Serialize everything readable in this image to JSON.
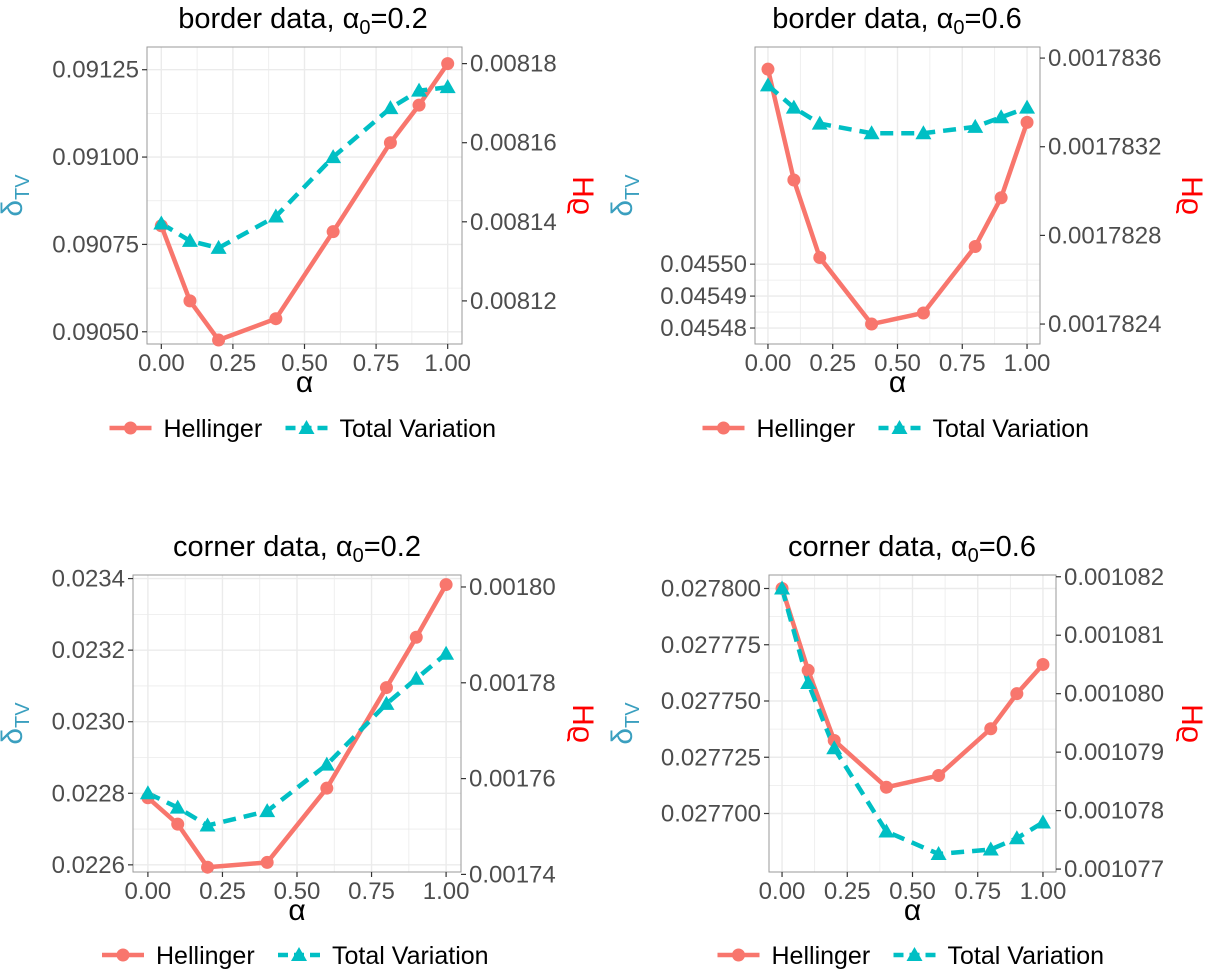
{
  "colors": {
    "hellinger": "#F8766D",
    "total_variation": "#00BFC4",
    "tv_axis_label": "#3A9FBF",
    "hellinger_axis_label": "#FF0000",
    "grid": "#EBEBEB",
    "panel_border": "#9A9A9A",
    "tick_text": "#4D4D4D"
  },
  "legend": {
    "placement": "bottom",
    "hellinger_label": "Hellinger",
    "tv_label": "Total Variation",
    "hellinger_marker": "circle",
    "tv_marker": "triangle"
  },
  "chart_data": [
    {
      "type": "line",
      "title_main": "border data, ",
      "title_symbol": "α",
      "title_subscript": "0",
      "title_suffix": "=0.2",
      "xlabel": "α",
      "ylabel_left": {
        "symbol": "δ",
        "subscript": "TV"
      },
      "ylabel_right": "Hϱ",
      "xlim": [
        -0.05,
        1.05
      ],
      "x_ticks": [
        0,
        0.25,
        0.5,
        0.75,
        1
      ],
      "x_tick_labels": [
        "0.00",
        "0.25",
        "0.50",
        "0.75",
        "1.00"
      ],
      "left_ylim": [
        0.090465,
        0.091315
      ],
      "left_ticks": [
        0.0905,
        0.09075,
        0.091,
        0.09125
      ],
      "left_tick_labels": [
        "0.09050",
        "0.09075",
        "0.09100",
        "0.09125"
      ],
      "right_ylim": [
        0.0081091,
        0.0081842
      ],
      "right_ticks": [
        0.00812,
        0.00814,
        0.00816,
        0.00818
      ],
      "right_tick_labels": [
        "0.00812",
        "0.00814",
        "0.00816",
        "0.00818"
      ],
      "x": [
        0,
        0.1,
        0.2,
        0.4,
        0.6,
        0.8,
        0.9,
        1
      ],
      "series": [
        {
          "name": "Hellinger",
          "axis": "right",
          "values": [
            0.008139,
            0.00812,
            0.0081101,
            0.0081155,
            0.0081375,
            0.00816,
            0.0081695,
            0.00818
          ]
        },
        {
          "name": "Total Variation",
          "axis": "left",
          "values": [
            0.09081,
            0.09076,
            0.09074,
            0.09083,
            0.091,
            0.09114,
            0.09119,
            0.0912
          ]
        }
      ]
    },
    {
      "type": "line",
      "title_main": "border data, ",
      "title_symbol": "α",
      "title_subscript": "0",
      "title_suffix": "=0.6",
      "xlabel": "α",
      "ylabel_left": {
        "symbol": "δ",
        "subscript": "TV"
      },
      "ylabel_right": "Hϱ",
      "xlim": [
        -0.05,
        1.05
      ],
      "x_ticks": [
        0,
        0.25,
        0.5,
        0.75,
        1
      ],
      "x_tick_labels": [
        "0.00",
        "0.25",
        "0.50",
        "0.75",
        "1.00"
      ],
      "left_ylim": [
        0.045475,
        0.045568
      ],
      "left_ticks": [
        0.04548,
        0.04549,
        0.0455
      ],
      "left_tick_labels": [
        "0.04548",
        "0.04549",
        "0.04550"
      ],
      "right_ylim": [
        0.00178231,
        0.00178365
      ],
      "right_ticks": [
        0.0017824,
        0.0017828,
        0.0017832,
        0.0017836
      ],
      "right_tick_labels": [
        "0.0017824",
        "0.0017828",
        "0.0017832",
        "0.0017836"
      ],
      "x": [
        0,
        0.1,
        0.2,
        0.4,
        0.6,
        0.8,
        0.9,
        1
      ],
      "series": [
        {
          "name": "Hellinger",
          "axis": "right",
          "values": [
            0.00178355,
            0.00178305,
            0.0017827,
            0.0017824,
            0.00178245,
            0.00178275,
            0.00178297,
            0.00178331
          ]
        },
        {
          "name": "Total Variation",
          "axis": "left",
          "values": [
            0.045556,
            0.045549,
            0.045544,
            0.045541,
            0.045541,
            0.045543,
            0.045546,
            0.045549
          ]
        }
      ]
    },
    {
      "type": "line",
      "title_main": "corner data, ",
      "title_symbol": "α",
      "title_subscript": "0",
      "title_suffix": "=0.2",
      "xlabel": "α",
      "ylabel_left": {
        "symbol": "δ",
        "subscript": "TV"
      },
      "ylabel_right": "Hϱ",
      "xlim": [
        -0.05,
        1.05
      ],
      "x_ticks": [
        0,
        0.25,
        0.5,
        0.75,
        1
      ],
      "x_tick_labels": [
        "0.00",
        "0.25",
        "0.50",
        "0.75",
        "1.00"
      ],
      "left_ylim": [
        0.02258,
        0.02341
      ],
      "left_ticks": [
        0.0226,
        0.0228,
        0.023,
        0.0232,
        0.0234
      ],
      "left_tick_labels": [
        "0.0226",
        "0.0228",
        "0.0230",
        "0.0232",
        "0.0234"
      ],
      "right_ylim": [
        0.0017405,
        0.0018025
      ],
      "right_ticks": [
        0.00174,
        0.00176,
        0.00178,
        0.0018
      ],
      "right_tick_labels": [
        "0.00174",
        "0.00176",
        "0.00178",
        "0.00180"
      ],
      "x": [
        0,
        0.1,
        0.2,
        0.4,
        0.6,
        0.8,
        0.9,
        1
      ],
      "series": [
        {
          "name": "Hellinger",
          "axis": "right",
          "values": [
            0.001756,
            0.0017505,
            0.0017415,
            0.0017425,
            0.001758,
            0.001779,
            0.0017895,
            0.0018005
          ]
        },
        {
          "name": "Total Variation",
          "axis": "left",
          "values": [
            0.0228,
            0.02276,
            0.02271,
            0.02275,
            0.02288,
            0.02305,
            0.02312,
            0.02319
          ]
        }
      ]
    },
    {
      "type": "line",
      "title_main": "corner data, ",
      "title_symbol": "α",
      "title_subscript": "0",
      "title_suffix": "=0.6",
      "xlabel": "α",
      "ylabel_left": {
        "symbol": "δ",
        "subscript": "TV"
      },
      "ylabel_right": "Hϱ",
      "xlim": [
        -0.05,
        1.05
      ],
      "x_ticks": [
        0,
        0.25,
        0.5,
        0.75,
        1
      ],
      "x_tick_labels": [
        "0.00",
        "0.25",
        "0.50",
        "0.75",
        "1.00"
      ],
      "left_ylim": [
        0.027674,
        0.027806
      ],
      "left_ticks": [
        0.0277,
        0.027725,
        0.02775,
        0.027775,
        0.0278
      ],
      "left_tick_labels": [
        "0.027700",
        "0.027725",
        "0.027750",
        "0.027775",
        "0.027800"
      ],
      "right_ylim": [
        0.00107695,
        0.00108203
      ],
      "right_ticks": [
        0.001077,
        0.001078,
        0.001079,
        0.00108,
        0.001081,
        0.001082
      ],
      "right_tick_labels": [
        "0.001077",
        "0.001078",
        "0.001079",
        "0.001080",
        "0.001081",
        "0.001082"
      ],
      "x": [
        0,
        0.1,
        0.2,
        0.4,
        0.6,
        0.8,
        0.9,
        1
      ],
      "series": [
        {
          "name": "Hellinger",
          "axis": "right",
          "values": [
            0.0010818,
            0.0010804,
            0.0010792,
            0.0010784,
            0.0010786,
            0.0010794,
            0.00108,
            0.0010805
          ]
        },
        {
          "name": "Total Variation",
          "axis": "left",
          "values": [
            0.0278,
            0.027758,
            0.027729,
            0.027692,
            0.027682,
            0.027684,
            0.027689,
            0.027696
          ]
        }
      ]
    }
  ]
}
